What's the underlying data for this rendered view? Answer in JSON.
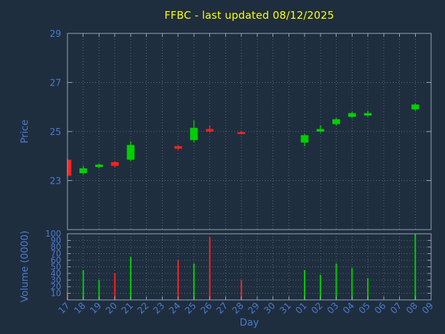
{
  "chart_data": {
    "type": "candlestick",
    "title": "FFBC - last updated 08/12/2025",
    "xlabel": "Day",
    "ylabel_price": "Price",
    "ylabel_volume": "Volume (0000)",
    "legend": "none",
    "grid": true,
    "x_categories": [
      "17",
      "18",
      "19",
      "20",
      "21",
      "22",
      "23",
      "24",
      "25",
      "26",
      "27",
      "28",
      "29",
      "30",
      "31",
      "01",
      "02",
      "03",
      "04",
      "05",
      "06",
      "07",
      "08",
      "09"
    ],
    "price_axis": {
      "min": 21,
      "max": 29,
      "ticks": [
        23,
        25,
        27,
        29
      ]
    },
    "volume_axis": {
      "min": 0,
      "max": 100,
      "ticks": [
        10,
        20,
        30,
        40,
        50,
        60,
        70,
        80,
        90,
        100
      ]
    },
    "candles": [
      {
        "day": "17",
        "open": 23.85,
        "high": 23.9,
        "low": 23.15,
        "close": 23.2
      },
      {
        "day": "18",
        "open": 23.3,
        "high": 23.6,
        "low": 23.25,
        "close": 23.5
      },
      {
        "day": "19",
        "open": 23.55,
        "high": 23.7,
        "low": 23.5,
        "close": 23.65
      },
      {
        "day": "20",
        "open": 23.75,
        "high": 23.8,
        "low": 23.55,
        "close": 23.6
      },
      {
        "day": "21",
        "open": 23.85,
        "high": 24.6,
        "low": 23.8,
        "close": 24.45
      },
      {
        "day": "24",
        "open": 24.4,
        "high": 24.45,
        "low": 24.25,
        "close": 24.3
      },
      {
        "day": "25",
        "open": 24.65,
        "high": 25.45,
        "low": 24.55,
        "close": 25.15
      },
      {
        "day": "26",
        "open": 25.1,
        "high": 25.25,
        "low": 24.95,
        "close": 25.0
      },
      {
        "day": "28",
        "open": 24.97,
        "high": 25.02,
        "low": 24.88,
        "close": 24.9
      },
      {
        "day": "01",
        "open": 24.55,
        "high": 24.9,
        "low": 24.4,
        "close": 24.85
      },
      {
        "day": "02",
        "open": 25.0,
        "high": 25.25,
        "low": 24.95,
        "close": 25.1
      },
      {
        "day": "03",
        "open": 25.3,
        "high": 25.55,
        "low": 25.25,
        "close": 25.5
      },
      {
        "day": "04",
        "open": 25.6,
        "high": 25.8,
        "low": 25.55,
        "close": 25.75
      },
      {
        "day": "05",
        "open": 25.65,
        "high": 25.85,
        "low": 25.6,
        "close": 25.75
      },
      {
        "day": "08",
        "open": 25.9,
        "high": 26.15,
        "low": 25.85,
        "close": 26.1
      }
    ],
    "volumes": [
      {
        "day": "17",
        "value": 10,
        "direction": "down"
      },
      {
        "day": "18",
        "value": 45,
        "direction": "up"
      },
      {
        "day": "19",
        "value": 30,
        "direction": "up"
      },
      {
        "day": "20",
        "value": 40,
        "direction": "down"
      },
      {
        "day": "21",
        "value": 65,
        "direction": "up"
      },
      {
        "day": "24",
        "value": 60,
        "direction": "down"
      },
      {
        "day": "25",
        "value": 55,
        "direction": "up"
      },
      {
        "day": "26",
        "value": 95,
        "direction": "down"
      },
      {
        "day": "28",
        "value": 30,
        "direction": "down"
      },
      {
        "day": "01",
        "value": 45,
        "direction": "up"
      },
      {
        "day": "02",
        "value": 38,
        "direction": "up"
      },
      {
        "day": "03",
        "value": 55,
        "direction": "up"
      },
      {
        "day": "04",
        "value": 48,
        "direction": "up"
      },
      {
        "day": "05",
        "value": 33,
        "direction": "up"
      },
      {
        "day": "08",
        "value": 100,
        "direction": "up"
      }
    ]
  },
  "colors": {
    "background": "#1f2e3e",
    "title": "#ffff00",
    "axis_text": "#4b7ad0",
    "border": "#97a8b8",
    "grid": "#5a6b7c",
    "up": "#00d000",
    "down": "#ff2222"
  }
}
